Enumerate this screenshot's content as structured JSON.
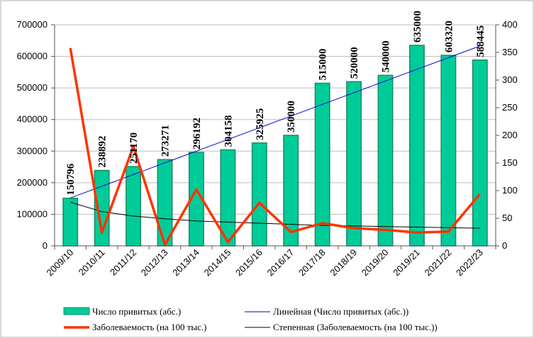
{
  "chart_data": {
    "type": "bar",
    "categories": [
      "2009/10",
      "2010/11",
      "2011/12",
      "2012/13",
      "2013/14",
      "2014/15",
      "2015/16",
      "2016/17",
      "2017/18",
      "2018/19",
      "2019/20",
      "2019/21",
      "2021/22",
      "2022/23"
    ],
    "y_left": {
      "min": 0,
      "max": 700000,
      "ticks": [
        "0",
        "100000",
        "200000",
        "300000",
        "400000",
        "500000",
        "600000",
        "700000"
      ]
    },
    "y_right": {
      "min": 0,
      "max": 400,
      "ticks": [
        "0",
        "50",
        "100",
        "150",
        "200",
        "250",
        "300",
        "350",
        "400"
      ]
    },
    "series": [
      {
        "name": "Число привитых (абс.)",
        "type": "bar",
        "axis": "left",
        "color": "#00cc99",
        "values": [
          150796,
          238892,
          251170,
          273271,
          296192,
          304158,
          325925,
          350000,
          515000,
          520000,
          540000,
          635000,
          603320,
          588445
        ],
        "labels": [
          "150796",
          "238892",
          "251170",
          "273271",
          "296192",
          "304158",
          "325925",
          "350000",
          "515000",
          "520000",
          "540000",
          "635000",
          "603320",
          "588445"
        ]
      },
      {
        "name": "Заболеваемость (на 100 тыс.)",
        "type": "line",
        "axis": "right",
        "color": "#ff3300",
        "values": [
          358,
          24,
          180,
          2,
          102,
          7,
          78,
          25,
          41,
          32,
          29,
          24,
          26,
          94
        ]
      },
      {
        "name": "Линейная (Число привитых (абс.))",
        "type": "trend-linear",
        "axis": "left",
        "color": "#0000cc",
        "values": [
          152000,
          189000,
          226000,
          263000,
          300000,
          337000,
          374000,
          411000,
          448000,
          485000,
          522000,
          559000,
          596000,
          633000
        ]
      },
      {
        "name": "Степенная (Заболеваемость (на 100 тыс.))",
        "type": "trend-power",
        "axis": "right",
        "color": "#000000",
        "values": [
          79,
          62,
          54,
          49,
          45,
          43,
          41,
          39,
          37,
          36,
          35,
          34,
          33,
          32
        ]
      }
    ],
    "grid": true,
    "legend_position": "bottom"
  }
}
